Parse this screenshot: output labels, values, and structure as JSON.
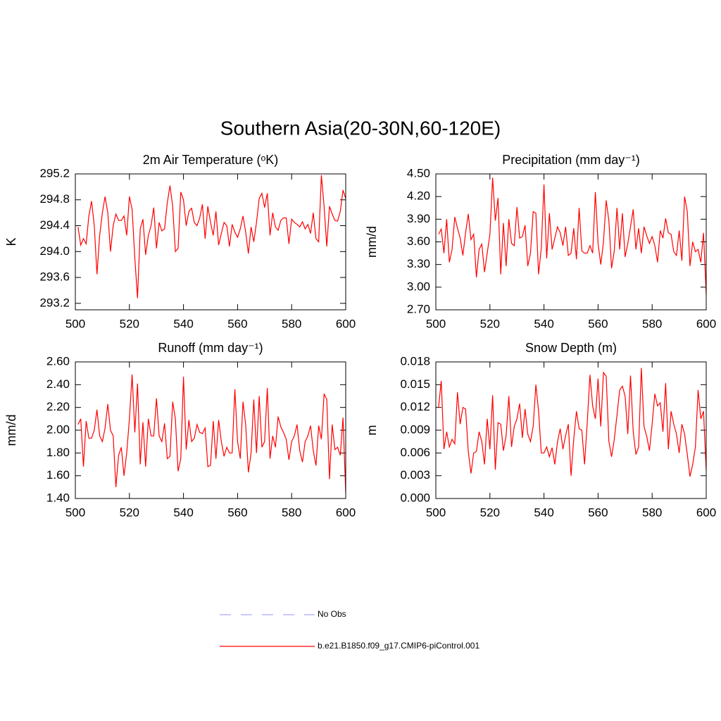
{
  "title": "Southern Asia(20-30N,60-120E)",
  "legend": [
    {
      "name": "No Obs",
      "color": "#aaaaff",
      "dash": true
    },
    {
      "name": "b.e21.B1850.f09_g17.CMIP6-piControl.001",
      "color": "#ff0000",
      "dash": false
    }
  ],
  "chart_data": [
    {
      "type": "line",
      "title": "2m Air Temperature (ᵒK)",
      "ylabel": "K",
      "color": "#ff0000",
      "x": [
        501,
        502,
        503,
        504,
        505,
        506,
        507,
        508,
        509,
        510,
        511,
        512,
        513,
        514,
        515,
        516,
        517,
        518,
        519,
        520,
        521,
        522,
        523,
        524,
        525,
        526,
        527,
        528,
        529,
        530,
        531,
        532,
        533,
        534,
        535,
        536,
        537,
        538,
        539,
        540,
        541,
        542,
        543,
        544,
        545,
        546,
        547,
        548,
        549,
        550,
        551,
        552,
        553,
        554,
        555,
        556,
        557,
        558,
        559,
        560,
        561,
        562,
        563,
        564,
        565,
        566,
        567,
        568,
        569,
        570,
        571,
        572,
        573,
        574,
        575,
        576,
        577,
        578,
        579,
        580,
        581,
        582,
        583,
        584,
        585,
        586,
        587,
        588,
        589,
        590,
        591,
        592,
        593,
        594,
        595,
        596,
        597,
        598,
        599,
        600
      ],
      "values": [
        294.38,
        294.1,
        294.2,
        294.12,
        294.55,
        294.78,
        294.4,
        293.65,
        294.25,
        294.6,
        294.85,
        294.6,
        294.0,
        294.4,
        294.58,
        294.48,
        294.48,
        294.55,
        294.25,
        294.85,
        294.65,
        293.9,
        293.28,
        294.35,
        294.5,
        293.95,
        294.25,
        294.4,
        294.68,
        294.05,
        294.45,
        294.32,
        294.35,
        294.75,
        295.02,
        294.7,
        294.0,
        294.05,
        294.92,
        294.8,
        294.4,
        294.62,
        294.67,
        294.45,
        294.4,
        294.52,
        294.73,
        294.2,
        294.7,
        294.45,
        294.25,
        294.62,
        294.1,
        294.28,
        294.45,
        294.4,
        294.08,
        294.42,
        294.3,
        294.22,
        294.35,
        294.55,
        294.3,
        293.97,
        294.38,
        294.15,
        294.45,
        294.82,
        294.9,
        294.68,
        294.9,
        294.25,
        294.6,
        294.38,
        294.33,
        294.48,
        294.52,
        294.52,
        294.12,
        294.5,
        294.45,
        294.42,
        294.38,
        294.46,
        294.35,
        294.42,
        294.28,
        294.6,
        294.2,
        294.15,
        295.18,
        294.7,
        294.08,
        294.7,
        294.58,
        294.48,
        294.47,
        294.62,
        294.95,
        294.82
      ],
      "xlim": [
        500,
        600
      ],
      "xticks": [
        500,
        520,
        540,
        560,
        580,
        600
      ],
      "ylim": [
        293.1,
        295.2
      ],
      "yticks": [
        293.2,
        293.6,
        {
          "value": 294.0,
          "label": "294.0"
        },
        294.4,
        294.8,
        295.2
      ]
    },
    {
      "type": "line",
      "title": "Precipitation (mm day⁻¹)",
      "ylabel": "mm/d",
      "color": "#ff0000",
      "x": [
        501,
        502,
        503,
        504,
        505,
        506,
        507,
        508,
        509,
        510,
        511,
        512,
        513,
        514,
        515,
        516,
        517,
        518,
        519,
        520,
        521,
        522,
        523,
        524,
        525,
        526,
        527,
        528,
        529,
        530,
        531,
        532,
        533,
        534,
        535,
        536,
        537,
        538,
        539,
        540,
        541,
        542,
        543,
        544,
        545,
        546,
        547,
        548,
        549,
        550,
        551,
        552,
        553,
        554,
        555,
        556,
        557,
        558,
        559,
        560,
        561,
        562,
        563,
        564,
        565,
        566,
        567,
        568,
        569,
        570,
        571,
        572,
        573,
        574,
        575,
        576,
        577,
        578,
        579,
        580,
        581,
        582,
        583,
        584,
        585,
        586,
        587,
        588,
        589,
        590,
        591,
        592,
        593,
        594,
        595,
        596,
        597,
        598,
        599,
        600
      ],
      "values": [
        3.7,
        3.77,
        3.45,
        3.9,
        3.33,
        3.5,
        3.93,
        3.78,
        3.65,
        3.42,
        3.72,
        3.97,
        3.63,
        3.7,
        3.13,
        3.5,
        3.57,
        3.2,
        3.45,
        3.7,
        4.45,
        3.88,
        4.18,
        3.17,
        3.85,
        3.28,
        3.9,
        3.58,
        3.55,
        4.06,
        3.65,
        3.67,
        3.82,
        3.28,
        3.45,
        4.0,
        3.98,
        3.17,
        3.52,
        4.36,
        3.38,
        3.98,
        3.5,
        3.65,
        3.8,
        3.72,
        3.55,
        3.8,
        3.42,
        3.45,
        3.78,
        3.37,
        4.05,
        3.48,
        3.45,
        3.45,
        3.55,
        3.45,
        4.26,
        3.58,
        3.3,
        3.6,
        4.15,
        3.88,
        3.25,
        3.48,
        4.05,
        3.5,
        3.98,
        3.4,
        3.58,
        3.8,
        4.03,
        3.5,
        3.78,
        3.45,
        3.8,
        3.68,
        3.58,
        3.67,
        3.55,
        3.33,
        3.75,
        3.65,
        3.91,
        3.72,
        3.7,
        3.47,
        3.42,
        3.75,
        3.35,
        4.2,
        4.0,
        3.28,
        3.6,
        3.47,
        3.5,
        3.33,
        3.72,
        2.9
      ],
      "xlim": [
        500,
        600
      ],
      "xticks": [
        500,
        520,
        540,
        560,
        580,
        600
      ],
      "ylim": [
        2.7,
        4.5
      ],
      "yticks": [
        {
          "value": 2.7,
          "label": "2.70"
        },
        {
          "value": 3.0,
          "label": "3.00"
        },
        {
          "value": 3.3,
          "label": "3.30"
        },
        {
          "value": 3.6,
          "label": "3.60"
        },
        {
          "value": 3.9,
          "label": "3.90"
        },
        {
          "value": 4.2,
          "label": "4.20"
        },
        {
          "value": 4.5,
          "label": "4.50"
        }
      ]
    },
    {
      "type": "line",
      "title": "Runoff (mm day⁻¹)",
      "ylabel": "mm/d",
      "color": "#ff0000",
      "x": [
        501,
        502,
        503,
        504,
        505,
        506,
        507,
        508,
        509,
        510,
        511,
        512,
        513,
        514,
        515,
        516,
        517,
        518,
        519,
        520,
        521,
        522,
        523,
        524,
        525,
        526,
        527,
        528,
        529,
        530,
        531,
        532,
        533,
        534,
        535,
        536,
        537,
        538,
        539,
        540,
        541,
        542,
        543,
        544,
        545,
        546,
        547,
        548,
        549,
        550,
        551,
        552,
        553,
        554,
        555,
        556,
        557,
        558,
        559,
        560,
        561,
        562,
        563,
        564,
        565,
        566,
        567,
        568,
        569,
        570,
        571,
        572,
        573,
        574,
        575,
        576,
        577,
        578,
        579,
        580,
        581,
        582,
        583,
        584,
        585,
        586,
        587,
        588,
        589,
        590,
        591,
        592,
        593,
        594,
        595,
        596,
        597,
        598,
        599,
        600
      ],
      "values": [
        2.05,
        2.1,
        1.68,
        2.08,
        1.93,
        1.93,
        2.0,
        2.18,
        1.95,
        1.9,
        2.02,
        2.23,
        2.0,
        1.95,
        1.5,
        1.78,
        1.85,
        1.6,
        1.8,
        2.1,
        2.49,
        1.98,
        2.41,
        1.7,
        2.07,
        1.68,
        2.1,
        1.95,
        1.95,
        2.28,
        1.95,
        1.9,
        2.06,
        1.75,
        1.77,
        2.25,
        2.1,
        1.64,
        1.75,
        2.47,
        1.83,
        2.09,
        1.9,
        1.93,
        2.05,
        1.98,
        1.97,
        2.02,
        1.68,
        1.69,
        2.08,
        1.75,
        2.09,
        1.9,
        1.77,
        1.85,
        1.8,
        1.8,
        2.36,
        1.9,
        1.75,
        2.25,
        2.05,
        1.63,
        1.8,
        2.27,
        1.8,
        2.3,
        1.85,
        1.9,
        2.37,
        1.75,
        1.95,
        1.85,
        2.12,
        2.03,
        1.98,
        1.92,
        1.74,
        1.9,
        1.95,
        2.05,
        1.82,
        1.72,
        1.9,
        1.95,
        2.04,
        1.82,
        1.69,
        2.04,
        1.92,
        2.32,
        2.27,
        1.57,
        2.05,
        1.83,
        1.85,
        1.78,
        2.11,
        1.45
      ],
      "xlim": [
        500,
        600
      ],
      "xticks": [
        500,
        520,
        540,
        560,
        580,
        600
      ],
      "ylim": [
        1.4,
        2.6
      ],
      "yticks": [
        {
          "value": 1.4,
          "label": "1.40"
        },
        {
          "value": 1.6,
          "label": "1.60"
        },
        {
          "value": 1.8,
          "label": "1.80"
        },
        {
          "value": 2.0,
          "label": "2.00"
        },
        {
          "value": 2.2,
          "label": "2.20"
        },
        {
          "value": 2.4,
          "label": "2.40"
        },
        {
          "value": 2.6,
          "label": "2.60"
        }
      ]
    },
    {
      "type": "line",
      "title": "Snow Depth (m)",
      "ylabel": "m",
      "color": "#ff0000",
      "x": [
        501,
        502,
        503,
        504,
        505,
        506,
        507,
        508,
        509,
        510,
        511,
        512,
        513,
        514,
        515,
        516,
        517,
        518,
        519,
        520,
        521,
        522,
        523,
        524,
        525,
        526,
        527,
        528,
        529,
        530,
        531,
        532,
        533,
        534,
        535,
        536,
        537,
        538,
        539,
        540,
        541,
        542,
        543,
        544,
        545,
        546,
        547,
        548,
        549,
        550,
        551,
        552,
        553,
        554,
        555,
        556,
        557,
        558,
        559,
        560,
        561,
        562,
        563,
        564,
        565,
        566,
        567,
        568,
        569,
        570,
        571,
        572,
        573,
        574,
        575,
        576,
        577,
        578,
        579,
        580,
        581,
        582,
        583,
        584,
        585,
        586,
        587,
        588,
        589,
        590,
        591,
        592,
        593,
        594,
        595,
        596,
        597,
        598,
        599,
        600
      ],
      "values": [
        0.012,
        0.0155,
        0.0065,
        0.0088,
        0.0068,
        0.0078,
        0.0072,
        0.014,
        0.0098,
        0.012,
        0.0118,
        0.0062,
        0.0033,
        0.006,
        0.0062,
        0.0088,
        0.0075,
        0.0045,
        0.0105,
        0.0065,
        0.0136,
        0.0038,
        0.01,
        0.0098,
        0.0063,
        0.0083,
        0.0135,
        0.0068,
        0.0095,
        0.0105,
        0.0125,
        0.008,
        0.0118,
        0.0085,
        0.0075,
        0.0095,
        0.015,
        0.0115,
        0.006,
        0.006,
        0.0068,
        0.0055,
        0.0067,
        0.0045,
        0.0075,
        0.0092,
        0.0065,
        0.0083,
        0.0098,
        0.003,
        0.0078,
        0.0115,
        0.0092,
        0.009,
        0.0045,
        0.01,
        0.0163,
        0.0122,
        0.0105,
        0.0158,
        0.0095,
        0.0166,
        0.0161,
        0.0075,
        0.0055,
        0.0078,
        0.011,
        0.0143,
        0.0148,
        0.0135,
        0.0085,
        0.0162,
        0.0088,
        0.0058,
        0.0068,
        0.0172,
        0.0095,
        0.0082,
        0.0063,
        0.0098,
        0.0138,
        0.0122,
        0.0126,
        0.0088,
        0.0152,
        0.0065,
        0.0115,
        0.0098,
        0.0085,
        0.006,
        0.0098,
        0.0085,
        0.0058,
        0.0029,
        0.0045,
        0.0068,
        0.0143,
        0.0105,
        0.0115,
        0.0037
      ],
      "xlim": [
        500,
        600
      ],
      "xticks": [
        500,
        520,
        540,
        560,
        580,
        600
      ],
      "ylim": [
        0,
        0.018
      ],
      "yticks": [
        {
          "value": 0,
          "label": "0.000"
        },
        {
          "value": 0.003,
          "label": "0.003"
        },
        {
          "value": 0.006,
          "label": "0.006"
        },
        {
          "value": 0.009,
          "label": "0.009"
        },
        {
          "value": 0.012,
          "label": "0.012"
        },
        {
          "value": 0.015,
          "label": "0.015"
        },
        {
          "value": 0.018,
          "label": "0.018"
        }
      ]
    }
  ]
}
